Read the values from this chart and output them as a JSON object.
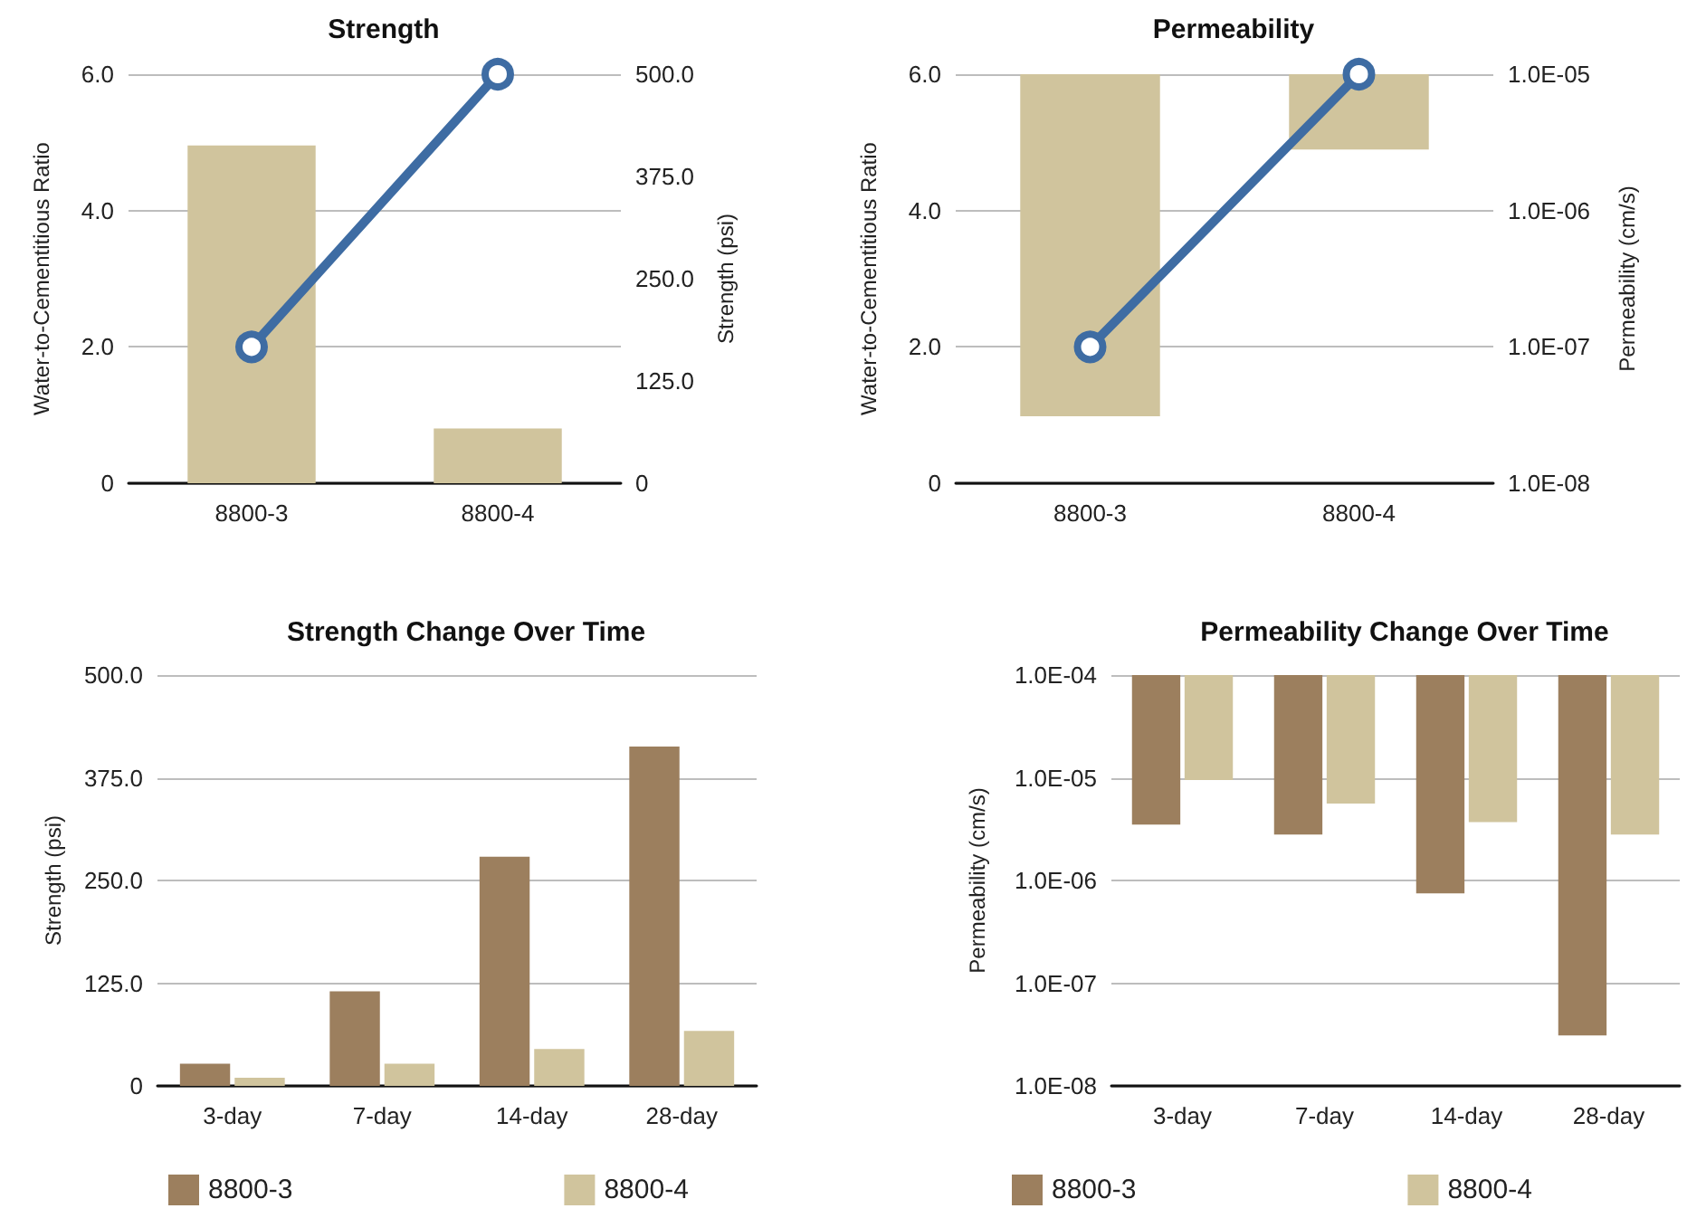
{
  "chart_data": [
    {
      "type": "bar",
      "title": "Strength",
      "categories": [
        "8800-3",
        "8800-4"
      ],
      "ylabel": "Water-to-Cementitious Ratio",
      "y2label": "Strength (psi)",
      "ylim": [
        0,
        6
      ],
      "yticks": [
        {
          "value": 0,
          "label": "0"
        },
        {
          "value": 2,
          "label": "2.0"
        },
        {
          "value": 4,
          "label": "4.0"
        },
        {
          "value": 6,
          "label": "6.0"
        }
      ],
      "y2lim": [
        0,
        500
      ],
      "y2ticks": [
        {
          "value": 0,
          "label": "0"
        },
        {
          "value": 125,
          "label": "125.0"
        },
        {
          "value": 250,
          "label": "250.0"
        },
        {
          "value": 375,
          "label": "375.0"
        },
        {
          "value": 500,
          "label": "500.0"
        }
      ],
      "grid": "y",
      "marker": "circle",
      "series": [
        {
          "type": "bar",
          "axis": "y2",
          "color": "#d0c49d",
          "values": [
            413,
            67
          ]
        },
        {
          "type": "line",
          "color": "#3e6ca3",
          "values": [
            2,
            6
          ]
        }
      ]
    },
    {
      "type": "bar",
      "title": "Permeability",
      "categories": [
        "8800-3",
        "8800-4"
      ],
      "ylabel": "Water-to-Cementitious Ratio",
      "y2label": "Permeability (cm/s)",
      "ylim": [
        0,
        6
      ],
      "yticks": [
        {
          "value": 0,
          "label": "0"
        },
        {
          "value": 2,
          "label": "2.0"
        },
        {
          "value": 4,
          "label": "4.0"
        },
        {
          "value": 6,
          "label": "6.0"
        }
      ],
      "y2lim": [
        1e-08,
        1e-05
      ],
      "y2ticks": [
        {
          "value": 1e-08,
          "label": "1.0E-08"
        },
        {
          "value": 1e-07,
          "label": "1.0E-07"
        },
        {
          "value": 1e-06,
          "label": "1.0E-06"
        },
        {
          "value": 1e-05,
          "label": "1.0E-05"
        }
      ],
      "log": "y2",
      "grid": "y",
      "marker": "circle",
      "series": [
        {
          "type": "bar",
          "axis": "y2",
          "color": "#d0c49d",
          "base": [
            1e-05,
            1e-05
          ],
          "values": [
            -9.969e-06,
            -7.2e-06
          ]
        },
        {
          "type": "line",
          "color": "#3e6ca3",
          "values": [
            2,
            6
          ]
        }
      ]
    },
    {
      "type": "bar",
      "title": "Strength Change Over Time",
      "categories": [
        "3-day",
        "7-day",
        "14-day",
        "28-day"
      ],
      "ylabel": "Strength (psi)",
      "ylim": [
        0,
        500
      ],
      "yticks": [
        {
          "value": 0,
          "label": "0"
        },
        {
          "value": 125,
          "label": "125.0"
        },
        {
          "value": 250,
          "label": "250.0"
        },
        {
          "value": 375,
          "label": "375.0"
        },
        {
          "value": 500,
          "label": "500.0"
        }
      ],
      "grid": "y",
      "legend": "bottom",
      "series": [
        {
          "name": "8800-3",
          "color": "#9c7f5e",
          "values": [
            27,
            115,
            279,
            413
          ]
        },
        {
          "name": "8800-4",
          "color": "#d0c49d",
          "values": [
            10,
            27,
            45,
            67
          ]
        }
      ]
    },
    {
      "type": "bar",
      "title": "Permeability Change Over Time",
      "categories": [
        "3-day",
        "7-day",
        "14-day",
        "28-day"
      ],
      "ylabel": "Permeability (cm/s)",
      "ylim": [
        1e-08,
        0.0001
      ],
      "yticks": [
        {
          "value": 1e-08,
          "label": "1.0E-08"
        },
        {
          "value": 1e-07,
          "label": "1.0E-07"
        },
        {
          "value": 1e-06,
          "label": "1.0E-06"
        },
        {
          "value": 1e-05,
          "label": "1.0E-05"
        },
        {
          "value": 0.0001,
          "label": "1.0E-04"
        }
      ],
      "log": true,
      "grid": "y",
      "legend": "bottom",
      "series": [
        {
          "name": "8800-3",
          "color": "#9c7f5e",
          "base": [
            0.0001,
            0.0001,
            0.0001,
            0.0001
          ],
          "values": [
            -9.65e-05,
            -9.72e-05,
            -9.925e-05,
            -9.9969e-05
          ]
        },
        {
          "name": "8800-4",
          "color": "#d0c49d",
          "base": [
            0.0001,
            0.0001,
            0.0001,
            0.0001
          ],
          "values": [
            -9.05e-05,
            -9.44e-05,
            -9.63e-05,
            -9.72e-05
          ]
        }
      ]
    }
  ]
}
